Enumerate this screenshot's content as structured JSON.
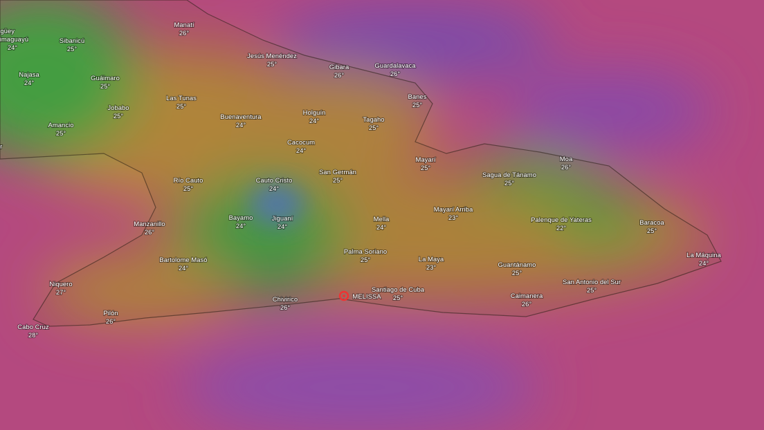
{
  "places": [
    {
      "name": "Camagüey"
    },
    {
      "name": "Jimaguayú",
      "temp": "24°"
    },
    {
      "name": "Sibanicú",
      "temp": "25°"
    },
    {
      "name": "Manatí",
      "temp": "26°"
    },
    {
      "name": "Jesús Menéndez",
      "temp": "25°"
    },
    {
      "name": "Gibara",
      "temp": "26°"
    },
    {
      "name": "Guardalavaca",
      "temp": "26°"
    },
    {
      "name": "Najasa",
      "temp": "24°"
    },
    {
      "name": "Guáimaro",
      "temp": "25°"
    },
    {
      "name": "Las Tunas",
      "temp": "25°"
    },
    {
      "name": "Banes",
      "temp": "25°"
    },
    {
      "name": "Jobabo",
      "temp": "25°"
    },
    {
      "name": "Buenaventura",
      "temp": "24°"
    },
    {
      "name": "Holguín",
      "temp": "24°"
    },
    {
      "name": "Tagaho",
      "temp": "25°"
    },
    {
      "name": "Amancio",
      "temp": "25°"
    },
    {
      "name": "Florida Sur"
    },
    {
      "name": "Cacocum",
      "temp": "24°"
    },
    {
      "name": "Mayarí",
      "temp": "25°"
    },
    {
      "name": "Moa",
      "temp": "26°"
    },
    {
      "name": "San Germán",
      "temp": "25°"
    },
    {
      "name": "Sagua de Tánamo",
      "temp": "25°"
    },
    {
      "name": "Río Cauto",
      "temp": "25°"
    },
    {
      "name": "Cauto Cristo",
      "temp": "24°"
    },
    {
      "name": "Mayarí Arriba",
      "temp": "23°"
    },
    {
      "name": "Bayamo",
      "temp": "24°"
    },
    {
      "name": "Jiguaní",
      "temp": "24°"
    },
    {
      "name": "Mella",
      "temp": "24°"
    },
    {
      "name": "Palenque de Yateras",
      "temp": "22°"
    },
    {
      "name": "Baracoa",
      "temp": "25°"
    },
    {
      "name": "Manzanillo",
      "temp": "26°"
    },
    {
      "name": "Palma Soriano",
      "temp": "25°"
    },
    {
      "name": "La Máquina",
      "temp": "24°"
    },
    {
      "name": "Bartolome Masó",
      "temp": "24°"
    },
    {
      "name": "La Maya",
      "temp": "23°"
    },
    {
      "name": "Guantánamo",
      "temp": "25°"
    },
    {
      "name": "San Antonio del Sur",
      "temp": "25°"
    },
    {
      "name": "Niquero",
      "temp": "27°"
    },
    {
      "name": "Santiago de Cuba",
      "temp": "25°"
    },
    {
      "name": "Caimanera",
      "temp": "26°"
    },
    {
      "name": "Chivirico",
      "temp": "26°"
    },
    {
      "name": "Pilón",
      "temp": "26°"
    },
    {
      "name": "Cabo Cruz",
      "temp": "28°"
    }
  ],
  "storm": {
    "name": "MELISSA"
  }
}
